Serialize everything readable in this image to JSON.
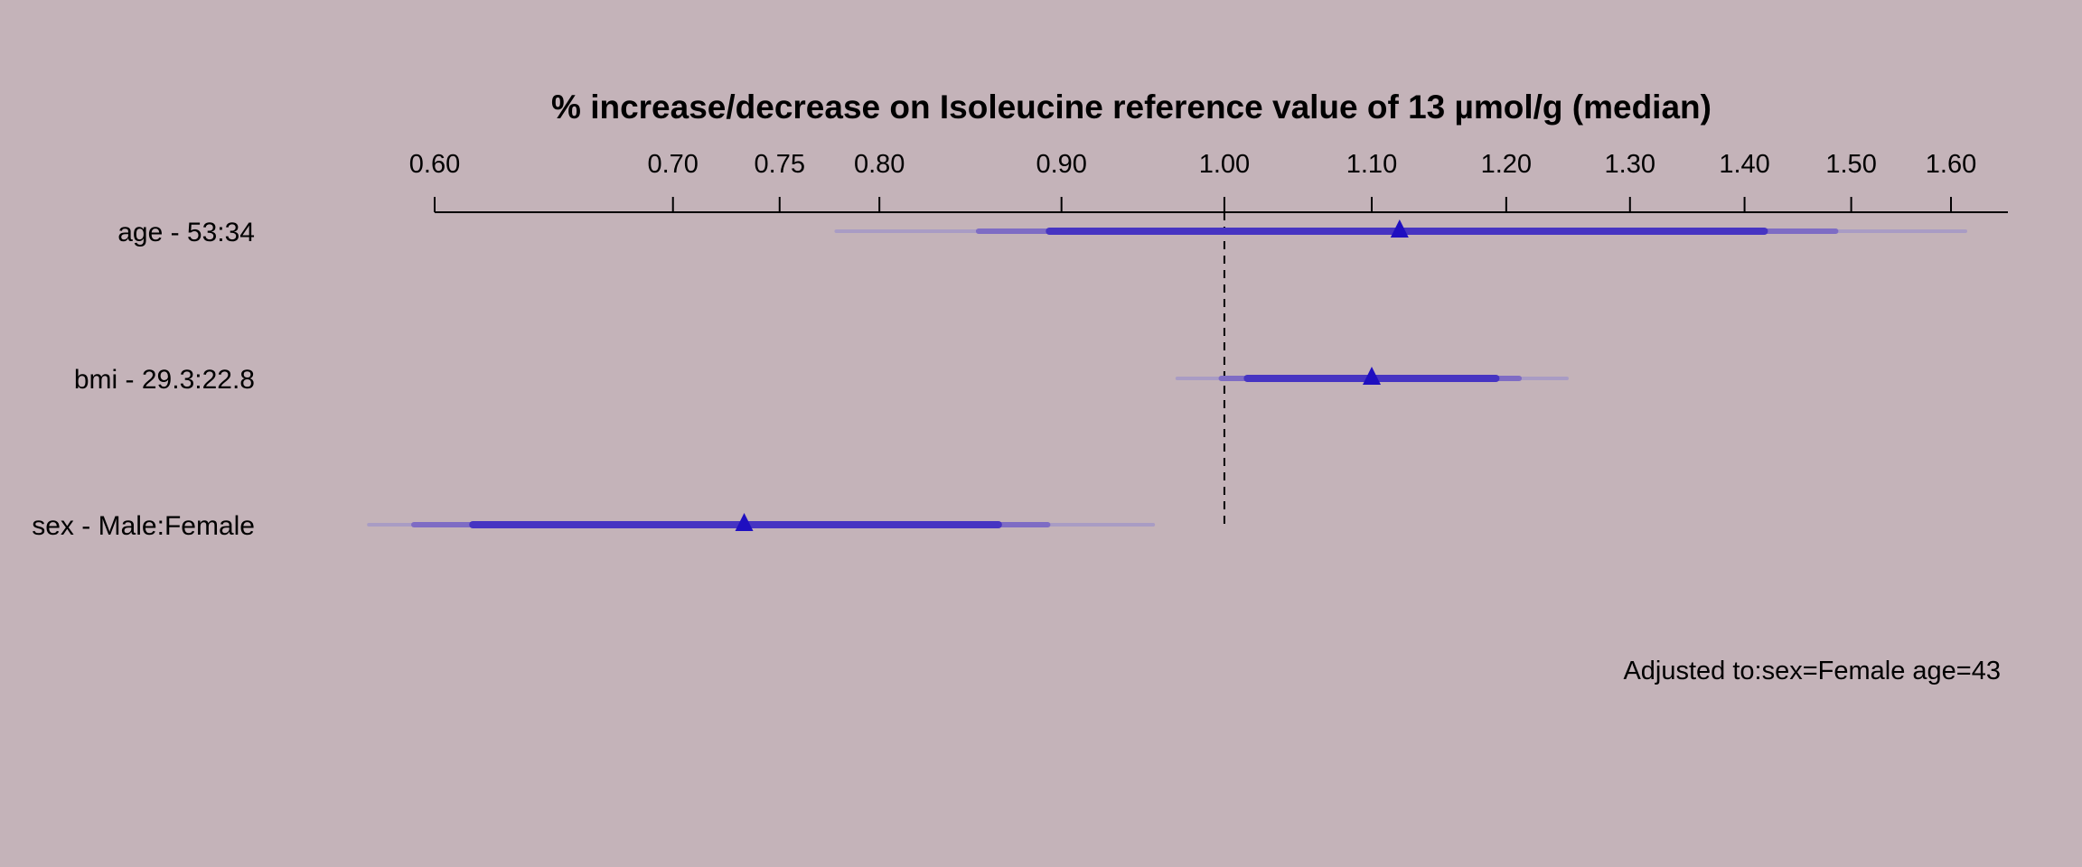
{
  "chart_data": {
    "type": "forest",
    "title": "% increase/decrease on Isoleucine reference value of 13 µmol/g (median)",
    "x_scale": "log",
    "xlim": [
      0.6,
      1.66
    ],
    "ticks": [
      {
        "value": 0.6,
        "label": "0.60"
      },
      {
        "value": 0.7,
        "label": "0.70"
      },
      {
        "value": 0.75,
        "label": "0.75"
      },
      {
        "value": 0.8,
        "label": "0.80"
      },
      {
        "value": 0.9,
        "label": "0.90"
      },
      {
        "value": 1.0,
        "label": "1.00"
      },
      {
        "value": 1.1,
        "label": "1.10"
      },
      {
        "value": 1.2,
        "label": "1.20"
      },
      {
        "value": 1.3,
        "label": "1.30"
      },
      {
        "value": 1.4,
        "label": "1.40"
      },
      {
        "value": 1.5,
        "label": "1.50"
      },
      {
        "value": 1.6,
        "label": "1.60"
      }
    ],
    "reference_value": 1.0,
    "rows": [
      {
        "label": "age - 53:34",
        "estimate": 1.12,
        "ci_outer": [
          0.778,
          1.615
        ],
        "ci_middle": [
          0.853,
          1.485
        ],
        "ci_inner": [
          0.893,
          1.418
        ]
      },
      {
        "label": "bmi - 29.3:22.8",
        "estimate": 1.1,
        "ci_outer": [
          0.97,
          1.248
        ],
        "ci_middle": [
          0.998,
          1.21
        ],
        "ci_inner": [
          1.015,
          1.192
        ]
      },
      {
        "label": "sex - Male:Female",
        "estimate": 0.733,
        "ci_outer": [
          0.575,
          0.955
        ],
        "ci_middle": [
          0.592,
          0.892
        ],
        "ci_inner": [
          0.615,
          0.864
        ]
      }
    ],
    "annotation": "Adjusted to:sex=Female age=43",
    "colors": {
      "background": "#c4b3b9",
      "ci_outer": "#a99cc4",
      "ci_middle": "#7e6cc4",
      "ci_inner": "#4634c2",
      "point": "#1f0fc0",
      "axis": "#000000"
    }
  }
}
